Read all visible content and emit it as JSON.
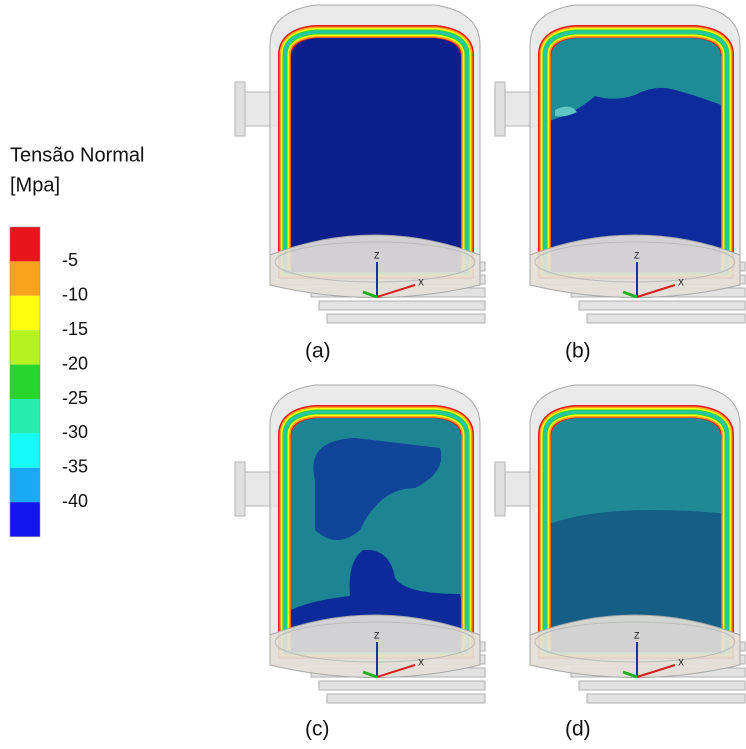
{
  "legend": {
    "title": "Tensão Normal",
    "unit": "[Mpa]",
    "colors": [
      "#e8151c",
      "#fba21c",
      "#ffff0f",
      "#b6f21f",
      "#27d52c",
      "#25eeac",
      "#16fbfb",
      "#1aa9f5",
      "#1414ef"
    ],
    "labels": [
      "-5",
      "-10",
      "-15",
      "-20",
      "-25",
      "-30",
      "-35",
      "-40"
    ]
  },
  "panels": [
    {
      "label": "(a)",
      "axes": {
        "z": "Z",
        "x": "X"
      }
    },
    {
      "label": "(b)",
      "axes": {
        "z": "Z",
        "x": "X"
      }
    },
    {
      "label": "(c)",
      "axes": {
        "z": "Z",
        "x": "X"
      }
    },
    {
      "label": "(d)",
      "axes": {
        "z": "Z",
        "x": "X"
      }
    }
  ]
}
